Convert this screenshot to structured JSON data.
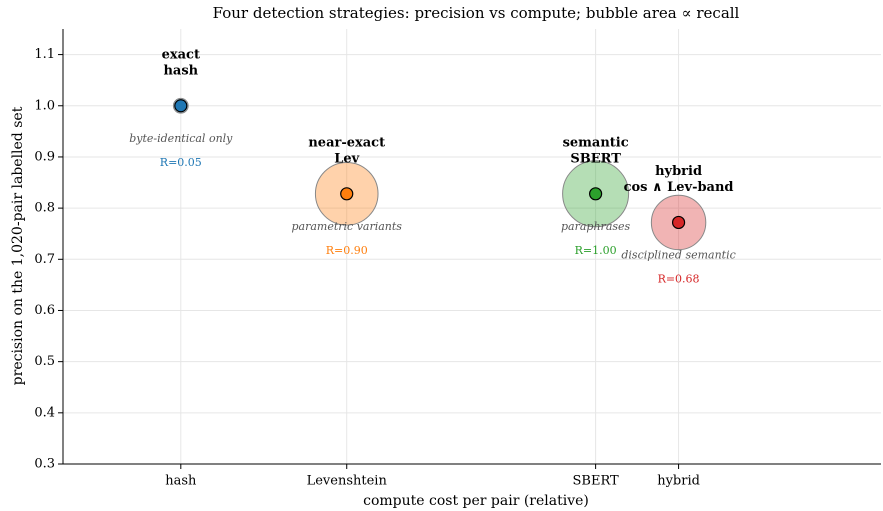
{
  "chart_data": {
    "type": "bubble",
    "title": "Four detection strategies: precision vs compute; bubble area ∝ recall",
    "xlabel": "compute cost per pair (relative)",
    "ylabel": "precision on the 1,020-pair labelled set",
    "x": [
      0,
      1,
      2.5,
      3
    ],
    "values": [
      1.0,
      0.828,
      0.828,
      0.772
    ],
    "sizes": [
      0.05,
      0.9,
      1.0,
      0.68
    ],
    "size_labels": [
      "R=0.05",
      "R=0.90",
      "R=1.00",
      "R=0.68"
    ],
    "colors": [
      "#1f77b4",
      "#ff7f0e",
      "#2ca02c",
      "#d62728"
    ],
    "labels": [
      [
        "exact",
        "hash"
      ],
      [
        "near-exact",
        "Lev"
      ],
      [
        "semantic",
        "SBERT"
      ],
      [
        "hybrid",
        "cos ∧ Lev-band"
      ]
    ],
    "annotations": [
      "byte-identical only",
      "parametric variants",
      "paraphrases",
      "disciplined semantic"
    ],
    "xlim": [
      -0.71,
      4.22
    ],
    "xticks": [
      {
        "value": 0,
        "label": "hash"
      },
      {
        "value": 1,
        "label": "Levenshtein"
      },
      {
        "value": 2.5,
        "label": "SBERT"
      },
      {
        "value": 3,
        "label": "hybrid"
      }
    ],
    "ylim": [
      0.3,
      1.15
    ],
    "yticks": [
      {
        "value": 0.3,
        "label": "0.3"
      },
      {
        "value": 0.4,
        "label": "0.4"
      },
      {
        "value": 0.5,
        "label": "0.5"
      },
      {
        "value": 0.6,
        "label": "0.6"
      },
      {
        "value": 0.7,
        "label": "0.7"
      },
      {
        "value": 0.8,
        "label": "0.8"
      },
      {
        "value": 0.9,
        "label": "0.9"
      },
      {
        "value": 1.0,
        "label": "1.0"
      },
      {
        "value": 1.1,
        "label": "1.1"
      }
    ],
    "grid": true
  }
}
